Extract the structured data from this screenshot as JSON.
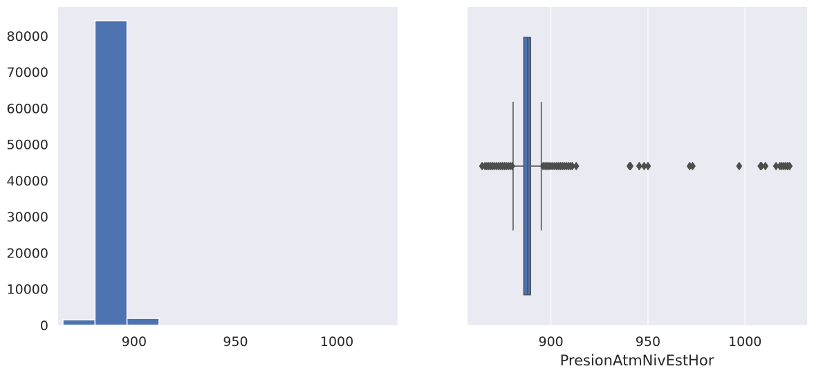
{
  "chart_data": [
    {
      "type": "bar",
      "title": "",
      "xlabel": "",
      "ylabel": "",
      "xlim": [
        862.5,
        1030
      ],
      "ylim": [
        0,
        88000
      ],
      "grid": false,
      "x_ticks": [
        900,
        950,
        1000
      ],
      "y_ticks": [
        0,
        10000,
        20000,
        30000,
        40000,
        50000,
        60000,
        70000,
        80000
      ],
      "bins": [
        {
          "x0": 864.9,
          "x1": 880.7,
          "value": 1500
        },
        {
          "x0": 880.7,
          "x1": 896.5,
          "value": 84200
        },
        {
          "x0": 896.5,
          "x1": 912.3,
          "value": 1900
        }
      ],
      "bar_color": "#4c72b0"
    },
    {
      "type": "box",
      "title": "",
      "xlabel": "PresionAtmNivEstHor",
      "ylabel": "",
      "xlim": [
        857,
        1032
      ],
      "grid": true,
      "x_ticks": [
        900,
        950,
        1000
      ],
      "box": {
        "q1": 886,
        "median": 888,
        "q3": 889.5,
        "whisker_low": 880.5,
        "whisker_high": 895
      },
      "outliers_low": [
        864.5,
        866,
        867,
        868,
        869,
        870,
        871,
        872,
        873,
        874,
        875,
        876,
        877,
        878,
        879,
        880
      ],
      "outliers_high": [
        896,
        897,
        898,
        899,
        900,
        901,
        902,
        903,
        904,
        905,
        906,
        907,
        908,
        909,
        910,
        911,
        913,
        940.5,
        941,
        945.5,
        948,
        950,
        971.5,
        973,
        997,
        1008,
        1008.5,
        1010.5,
        1016,
        1018,
        1019,
        1020,
        1021,
        1022,
        1023
      ],
      "box_color": "#4c72b0",
      "line_color": "#4d4d4d"
    }
  ]
}
